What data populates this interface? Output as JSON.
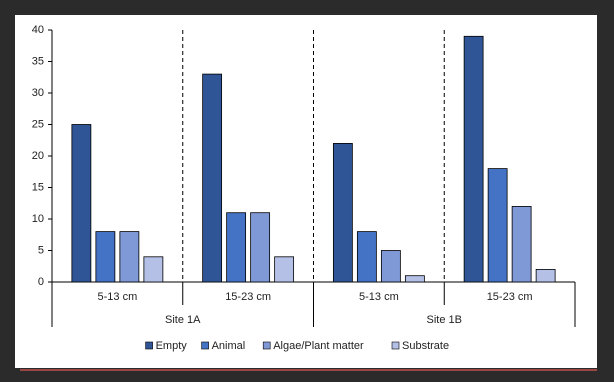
{
  "chart_data": {
    "type": "bar",
    "categories": [
      "5-13 cm",
      "15-23 cm",
      "5-13 cm",
      "15-23 cm"
    ],
    "groups": [
      "Site 1A",
      "Site 1B"
    ],
    "series": [
      {
        "name": "Empty",
        "color": "#2f5597",
        "values": [
          25,
          33,
          22,
          39
        ]
      },
      {
        "name": "Animal",
        "color": "#4472c4",
        "values": [
          8,
          11,
          8,
          18
        ]
      },
      {
        "name": "Algae/Plant matter",
        "color": "#7f98d6",
        "values": [
          8,
          11,
          5,
          12
        ]
      },
      {
        "name": "Substrate",
        "color": "#b4c0e6",
        "values": [
          4,
          4,
          1,
          2
        ]
      }
    ],
    "ylim": [
      0,
      40
    ],
    "yticks": [
      0,
      5,
      10,
      15,
      20,
      25,
      30,
      35,
      40
    ],
    "grid": false,
    "legend": "bottom"
  }
}
